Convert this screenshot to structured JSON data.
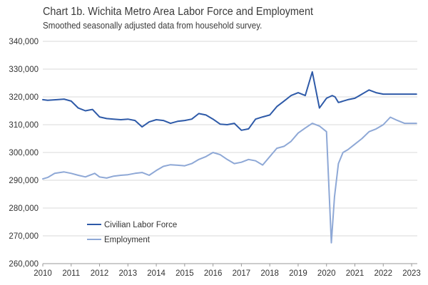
{
  "chart_data": {
    "type": "line",
    "title": "Chart 1b. Wichita Metro Area Labor Force and Employment",
    "subtitle": "Smoothed seasonally adjusted data from household survey.",
    "xlabel": "",
    "ylabel": "",
    "xlim": [
      2010,
      2023.2
    ],
    "ylim": [
      260000,
      340000
    ],
    "x_ticks": [
      "2010",
      "2011",
      "2012",
      "2013",
      "2014",
      "2015",
      "2016",
      "2017",
      "2018",
      "2019",
      "2020",
      "2021",
      "2022",
      "2023"
    ],
    "y_ticks": [
      "260,000",
      "270,000",
      "280,000",
      "290,000",
      "300,000",
      "310,000",
      "320,000",
      "330,000",
      "340,000"
    ],
    "grid": "horizontal",
    "legend_position": "bottom-left",
    "series": [
      {
        "name": "Civilian Labor Force",
        "color": "#2e5aa8",
        "x": [
          2010.0,
          2010.17,
          2010.5,
          2010.75,
          2011.0,
          2011.25,
          2011.5,
          2011.75,
          2012.0,
          2012.25,
          2012.5,
          2012.75,
          2013.0,
          2013.25,
          2013.5,
          2013.75,
          2014.0,
          2014.25,
          2014.5,
          2014.75,
          2015.0,
          2015.25,
          2015.5,
          2015.75,
          2016.0,
          2016.25,
          2016.5,
          2016.75,
          2017.0,
          2017.25,
          2017.5,
          2017.75,
          2018.0,
          2018.25,
          2018.5,
          2018.75,
          2019.0,
          2019.25,
          2019.5,
          2019.75,
          2020.0,
          2020.2,
          2020.3,
          2020.42,
          2020.5,
          2020.58,
          2020.75,
          2021.0,
          2021.25,
          2021.5,
          2021.75,
          2022.0,
          2022.25,
          2022.5,
          2022.75,
          2023.0,
          2023.17
        ],
        "values": [
          319000,
          318800,
          319000,
          319200,
          318500,
          316000,
          315000,
          315500,
          312800,
          312200,
          312000,
          311800,
          312000,
          311500,
          309200,
          311000,
          311800,
          311500,
          310500,
          311200,
          311500,
          312000,
          314000,
          313500,
          312000,
          310200,
          310000,
          310500,
          308000,
          308500,
          312000,
          312800,
          313500,
          316500,
          318500,
          320500,
          321500,
          320500,
          329000,
          316000,
          319500,
          320500,
          320000,
          318000,
          318200,
          318500,
          319000,
          319500,
          321000,
          322500,
          321500,
          321000,
          321000,
          321000,
          321000,
          321000,
          321000
        ]
      },
      {
        "name": "Employment",
        "color": "#8ea8d6",
        "x": [
          2010.0,
          2010.17,
          2010.42,
          2010.75,
          2011.0,
          2011.25,
          2011.5,
          2011.83,
          2012.0,
          2012.25,
          2012.5,
          2012.75,
          2013.0,
          2013.25,
          2013.5,
          2013.75,
          2014.0,
          2014.25,
          2014.5,
          2014.75,
          2015.0,
          2015.25,
          2015.5,
          2015.75,
          2016.0,
          2016.25,
          2016.5,
          2016.75,
          2017.0,
          2017.25,
          2017.5,
          2017.75,
          2018.0,
          2018.25,
          2018.5,
          2018.75,
          2019.0,
          2019.25,
          2019.5,
          2019.75,
          2020.0,
          2020.17,
          2020.28,
          2020.42,
          2020.58,
          2020.75,
          2021.0,
          2021.25,
          2021.5,
          2021.75,
          2022.0,
          2022.25,
          2022.5,
          2022.75,
          2023.0,
          2023.17
        ],
        "values": [
          290500,
          291000,
          292500,
          293000,
          292500,
          291800,
          291200,
          292500,
          291200,
          290800,
          291500,
          291800,
          292000,
          292500,
          292800,
          291800,
          293500,
          295000,
          295600,
          295400,
          295200,
          296000,
          297500,
          298500,
          300000,
          299200,
          297500,
          296000,
          296500,
          297500,
          297000,
          295500,
          298500,
          301500,
          302200,
          304000,
          307000,
          308800,
          310500,
          309500,
          307500,
          267500,
          284000,
          296000,
          300000,
          301000,
          303000,
          305000,
          307500,
          308500,
          310000,
          312700,
          311500,
          310500,
          310500,
          310500
        ]
      }
    ]
  }
}
